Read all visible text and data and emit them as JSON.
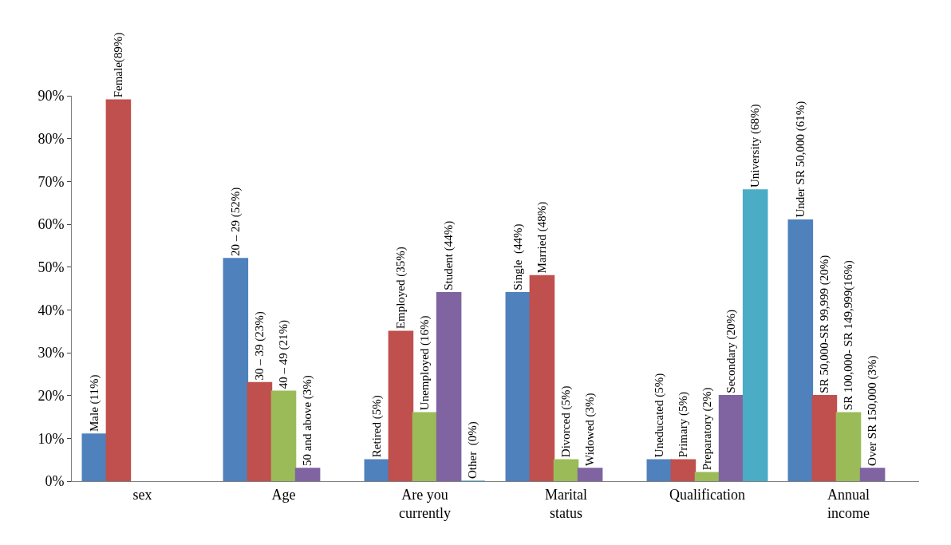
{
  "chart_data": {
    "type": "bar",
    "categories": [
      "sex",
      "Age",
      "Are you currently",
      "Marital status",
      "Qualification",
      "Annual income"
    ],
    "series": [
      {
        "color": "#4f81bd",
        "values": [
          11,
          52,
          5,
          44,
          5,
          61
        ],
        "value_labels": [
          "Male (11%)",
          "20 – 29 (52%)",
          "Retired (5%)",
          "Single  (44%)",
          "Uneducated (5%)",
          "Under SR 50,000 (61%)"
        ]
      },
      {
        "color": "#c0504d",
        "values": [
          89,
          23,
          35,
          48,
          5,
          20
        ],
        "value_labels": [
          "Female(89%)",
          "30 – 39 (23%)",
          "Employed (35%)",
          "Married (48%)",
          "Primary (5%)",
          "SR 50,000-SR 99,999 (20%)"
        ]
      },
      {
        "color": "#9bbb59",
        "values": [
          null,
          21,
          16,
          5,
          2,
          16
        ],
        "value_labels": [
          null,
          "40 – 49 (21%)",
          "Unemployed (16%)",
          "Divorced (5%)",
          "Preparatory (2%)",
          "SR 100,000- SR 149,999(16%)"
        ]
      },
      {
        "color": "#8064a2",
        "values": [
          null,
          3,
          44,
          3,
          20,
          3
        ],
        "value_labels": [
          null,
          "50 and above (3%)",
          "Student (44%)",
          "Widowed (3%)",
          "Secondary (20%)",
          "Over SR 150,000 (3%)"
        ]
      },
      {
        "color": "#4bacc6",
        "values": [
          null,
          null,
          0,
          null,
          68,
          null
        ],
        "value_labels": [
          null,
          null,
          "Other  (0%)",
          null,
          "University (68%)",
          null
        ]
      }
    ],
    "ylim": [
      0,
      90
    ],
    "yticks": [
      {
        "value": 0,
        "label": "0%"
      },
      {
        "value": 10,
        "label": "10%"
      },
      {
        "value": 20,
        "label": "20%"
      },
      {
        "value": 30,
        "label": "30%"
      },
      {
        "value": 40,
        "label": "40%"
      },
      {
        "value": 50,
        "label": "50%"
      },
      {
        "value": 60,
        "label": "60%"
      },
      {
        "value": 70,
        "label": "70%"
      },
      {
        "value": 80,
        "label": "80%"
      },
      {
        "value": 90,
        "label": "90%"
      }
    ],
    "grid": false
  }
}
